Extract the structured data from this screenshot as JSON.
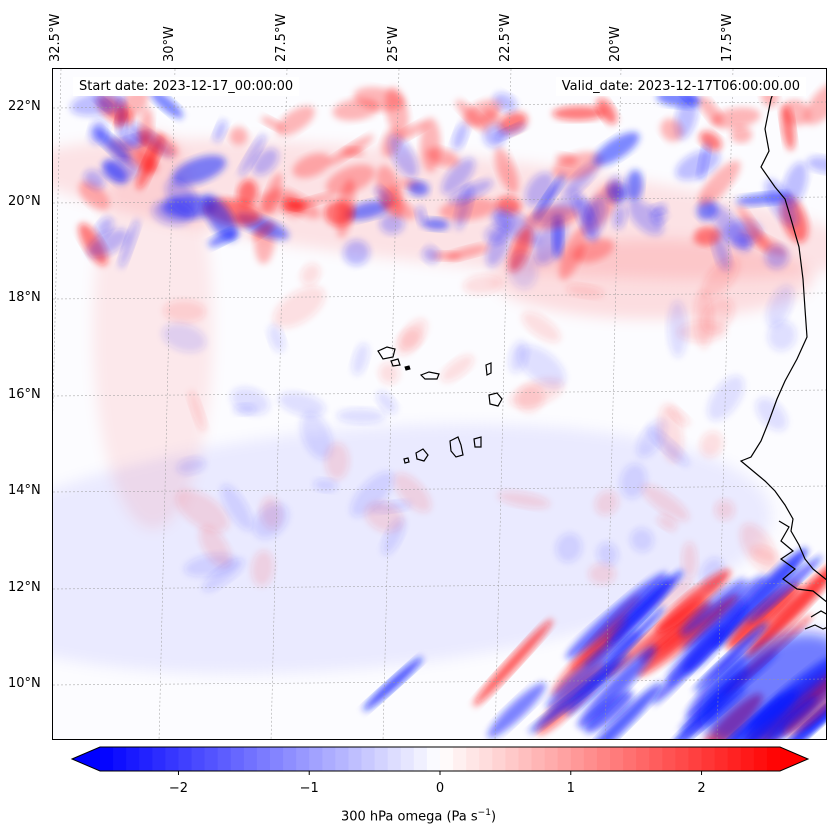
{
  "map": {
    "start_date_text": "Start date: 2023-12-17_00:00:00",
    "valid_date_text": "Valid_date: 2023-12-17T06:00:00.00",
    "longitude_labels": [
      "32.5°W",
      "30°W",
      "27.5°W",
      "25°W",
      "22.5°W",
      "20°W",
      "17.5°W"
    ],
    "latitude_labels": [
      "22°N",
      "20°N",
      "18°N",
      "16°N",
      "14°N",
      "12°N",
      "10°N"
    ],
    "lon_range_deg": [
      -33.0,
      -15.6
    ],
    "lat_range_deg": [
      8.9,
      22.8
    ],
    "colors": {
      "negative": "#0000ff",
      "neutral": "#ffffff",
      "positive": "#ff0000",
      "coastline": "#000000"
    }
  },
  "colorbar": {
    "ticks": [
      "−2",
      "−1",
      "0",
      "1",
      "2"
    ],
    "tick_values": [
      -2,
      -1,
      0,
      1,
      2
    ],
    "range": [
      -2.6,
      2.6
    ],
    "label_main": "300 hPa omega (Pa s",
    "label_exp": "−1",
    "label_close": ")"
  }
}
